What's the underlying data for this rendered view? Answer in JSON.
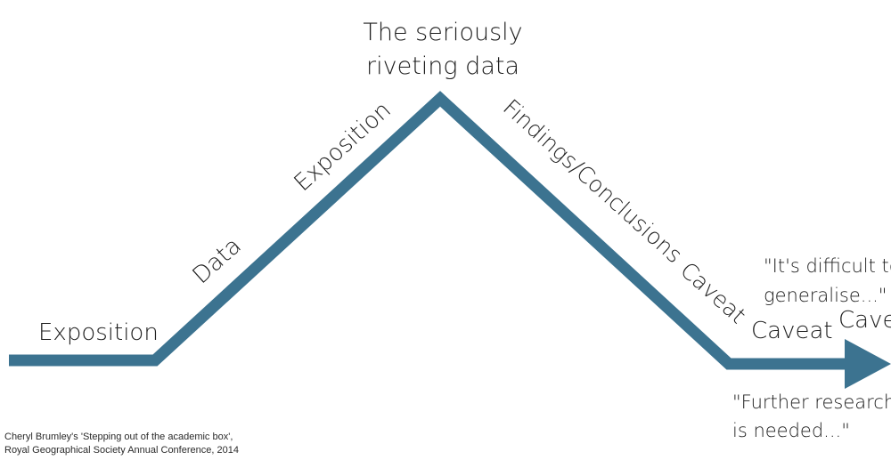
{
  "colors": {
    "line": "#3c7390",
    "text": "#1e1e1e",
    "background": "#ffffff"
  },
  "title": {
    "line1": "The seriously",
    "line2": "riveting data"
  },
  "labels": {
    "exposition_flat": "Exposition",
    "data": "Data",
    "exposition_rising": "Exposition",
    "findings": "Findings/Conclusions",
    "caveat_1": "Caveat",
    "caveat_2": "Caveat",
    "caveat_3": "Cave"
  },
  "quotes": {
    "difficult_line1": "\"It's difficult to",
    "difficult_line2": "generalise...\"",
    "research_line1": "\"Further research",
    "research_line2": "is needed...\""
  },
  "credit": {
    "line1": "Cheryl Brumley's 'Stepping out of the academic box',",
    "line2": "Royal Geographical Society Annual Conference, 2014"
  }
}
